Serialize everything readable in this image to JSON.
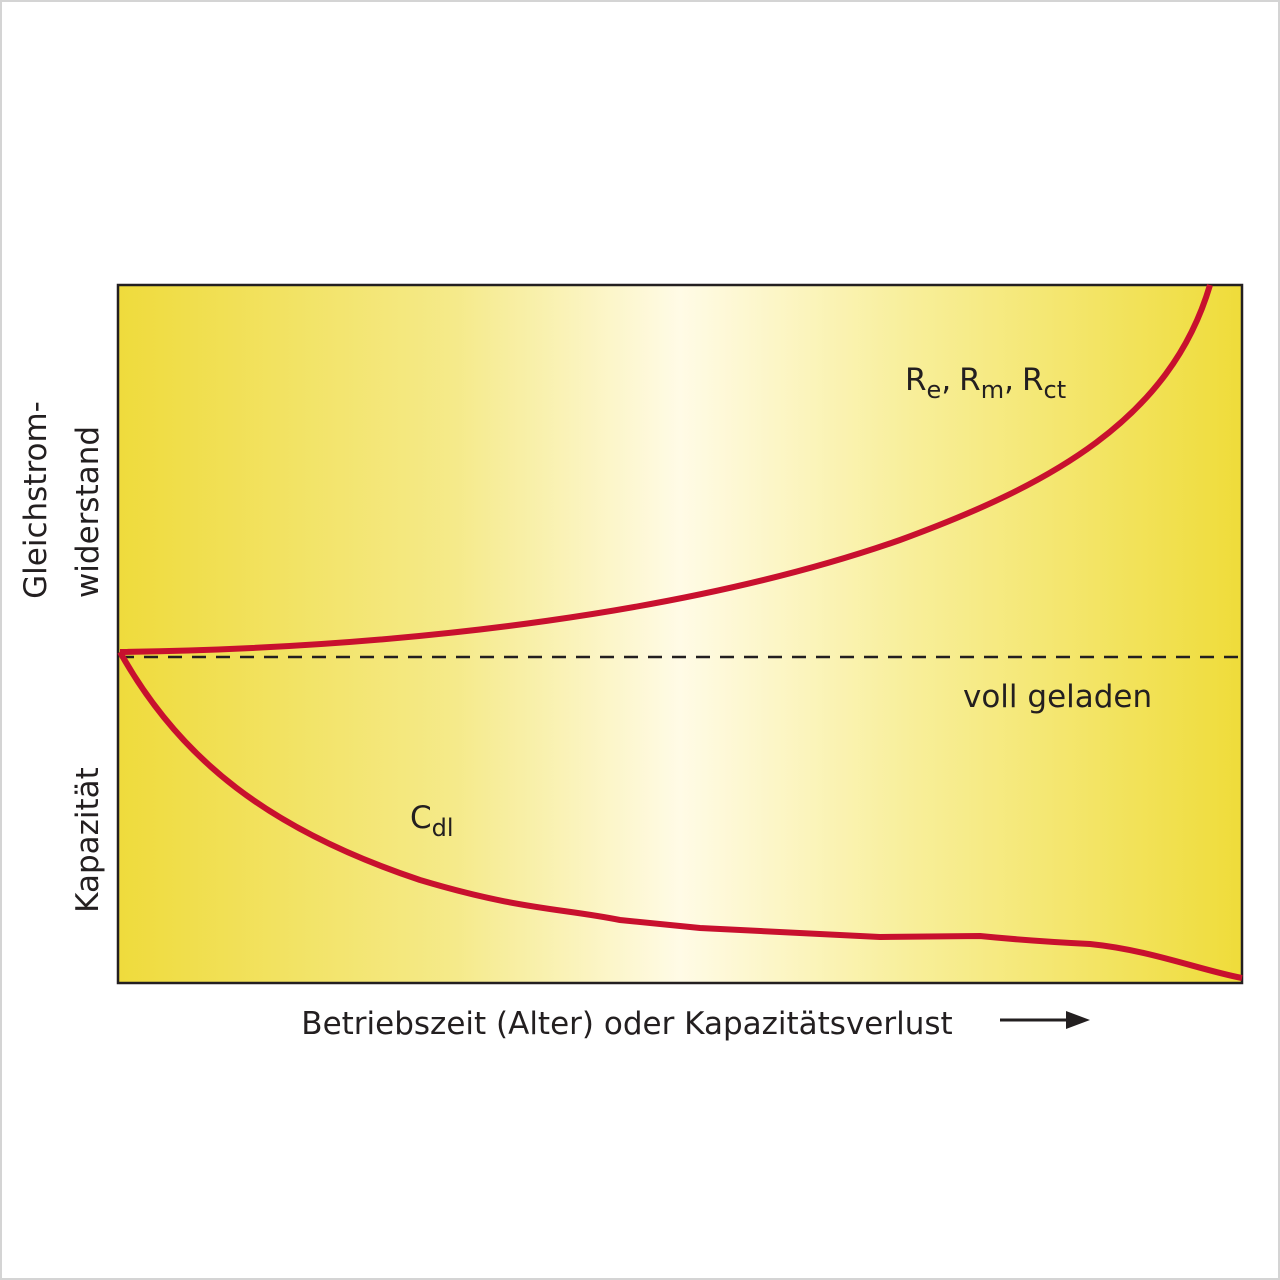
{
  "y_axis": {
    "upper_label": [
      "Gleichstrom-",
      "widerstand"
    ],
    "lower_label": "Kapazität"
  },
  "x_axis": {
    "label": "Betriebszeit (Alter) oder Kapazitätsverlust"
  },
  "resistance_label": {
    "items": [
      {
        "base": "R",
        "sub": "e"
      },
      {
        "base": "R",
        "sub": "m"
      },
      {
        "base": "R",
        "sub": "ct"
      }
    ],
    "separator": ","
  },
  "capacity_label": {
    "base": "C",
    "sub": "dl"
  },
  "reference_label": "voll geladen"
}
